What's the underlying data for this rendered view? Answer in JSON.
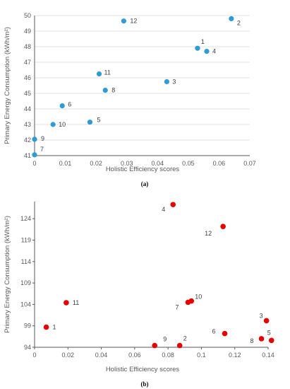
{
  "chart_data": [
    {
      "type": "scatter",
      "panel_label": "(a)",
      "xlabel": "Holistic Efficiency scores",
      "ylabel": "Primary Energy Consumption (kWh/m²)",
      "xlim": [
        0,
        0.07
      ],
      "ylim": [
        41,
        50
      ],
      "xticks": [
        "0",
        "0.01",
        "0.02",
        "0.03",
        "0.04",
        "0.05",
        "0.06",
        "0.07"
      ],
      "xtick_values": [
        0,
        0.01,
        0.02,
        0.03,
        0.04,
        0.05,
        0.06,
        0.07
      ],
      "yticks": [
        "41",
        "42",
        "43",
        "44",
        "45",
        "46",
        "47",
        "48",
        "49",
        "50"
      ],
      "ytick_values": [
        41,
        42,
        43,
        44,
        45,
        46,
        47,
        48,
        49,
        50
      ],
      "grid": "horizontal",
      "color": "#2e9bd6",
      "points": [
        {
          "label": "1",
          "x": 0.053,
          "y": 47.9
        },
        {
          "label": "2",
          "x": 0.064,
          "y": 49.8
        },
        {
          "label": "3",
          "x": 0.043,
          "y": 45.75
        },
        {
          "label": "4",
          "x": 0.056,
          "y": 47.7
        },
        {
          "label": "5",
          "x": 0.018,
          "y": 43.15
        },
        {
          "label": "6",
          "x": 0.009,
          "y": 44.2
        },
        {
          "label": "7",
          "x": 0.0,
          "y": 41.05
        },
        {
          "label": "8",
          "x": 0.023,
          "y": 45.2
        },
        {
          "label": "9",
          "x": 0.0,
          "y": 42.05
        },
        {
          "label": "10",
          "x": 0.006,
          "y": 43.0
        },
        {
          "label": "11",
          "x": 0.021,
          "y": 46.25
        },
        {
          "label": "12",
          "x": 0.029,
          "y": 49.65
        }
      ]
    },
    {
      "type": "scatter",
      "panel_label": "(b)",
      "xlabel": "Holistic Efficiency scores",
      "ylabel": "Primary Energy Consumption (kWh/m²)",
      "xlim": [
        0,
        0.14
      ],
      "ylim": [
        94,
        128
      ],
      "xticks": [
        "0",
        "0.02",
        "0.04",
        "0.06",
        "0.08",
        "0.1",
        "0.12",
        "0.14"
      ],
      "xtick_values": [
        0,
        0.02,
        0.04,
        0.06,
        0.08,
        0.1,
        0.12,
        0.14
      ],
      "yticks": [
        "94",
        "99",
        "104",
        "109",
        "114",
        "119",
        "124"
      ],
      "ytick_values": [
        94,
        99,
        104,
        109,
        114,
        119,
        124
      ],
      "grid": "none",
      "color": "#e60000",
      "points": [
        {
          "label": "1",
          "x": 0.007,
          "y": 98.7
        },
        {
          "label": "2",
          "x": 0.087,
          "y": 94.4
        },
        {
          "label": "3",
          "x": 0.139,
          "y": 100.2
        },
        {
          "label": "4",
          "x": 0.083,
          "y": 127.3
        },
        {
          "label": "5",
          "x": 0.142,
          "y": 95.6
        },
        {
          "label": "6",
          "x": 0.114,
          "y": 97.2
        },
        {
          "label": "7",
          "x": 0.092,
          "y": 104.5
        },
        {
          "label": "8",
          "x": 0.136,
          "y": 96.0
        },
        {
          "label": "9",
          "x": 0.072,
          "y": 94.4
        },
        {
          "label": "10",
          "x": 0.094,
          "y": 104.8
        },
        {
          "label": "11",
          "x": 0.019,
          "y": 104.4
        },
        {
          "label": "12",
          "x": 0.113,
          "y": 122.2
        }
      ]
    }
  ]
}
